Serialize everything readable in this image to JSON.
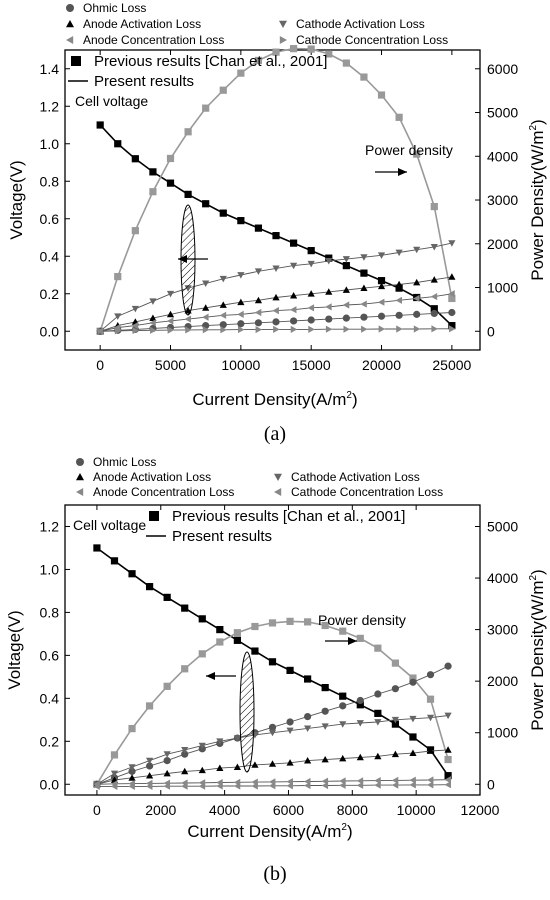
{
  "chart_data": [
    {
      "type": "line",
      "panel": "a",
      "caption": "(a)",
      "xlabel": "Current Density(A/m",
      "xlabel_sup": "2",
      "xlabel_end": ")",
      "ylabel_left": "Voltage(V)",
      "ylabel_right": "Power Density(W/m",
      "ylabel_right_sup": "2",
      "ylabel_right_end": ")",
      "xlim": [
        -2500,
        27000
      ],
      "ylim_left": [
        -0.1,
        1.5
      ],
      "ylim_right": [
        -428,
        6429
      ],
      "xticks": [
        0,
        5000,
        10000,
        15000,
        20000,
        25000
      ],
      "yticks_left": [
        0.0,
        0.2,
        0.4,
        0.6,
        0.8,
        1.0,
        1.2,
        1.4
      ],
      "yticks_right": [
        0,
        1000,
        2000,
        3000,
        4000,
        5000,
        6000
      ],
      "legend": {
        "ohmic": "Ohmic Loss",
        "anode_act": "Anode Activation Loss",
        "cathode_act": "Cathode Activation Loss",
        "anode_conc": "Anode Concentration Loss",
        "cathode_conc": "Cathode Concentration Loss",
        "previous": "Previous results [Chan et al., 2001]",
        "present": "Present results"
      },
      "annotations": {
        "cell_voltage": "Cell voltage",
        "power_density": "Power density"
      },
      "x": [
        0,
        1250,
        2500,
        3750,
        5000,
        6250,
        7500,
        8750,
        10000,
        11250,
        12500,
        13750,
        15000,
        16250,
        17500,
        18750,
        20000,
        21250,
        22500,
        23750,
        25000
      ],
      "series": [
        {
          "key": "cell_voltage",
          "axis": "left",
          "color": "#000000",
          "marker": "square",
          "values": [
            1.1,
            1.0,
            0.92,
            0.85,
            0.79,
            0.73,
            0.68,
            0.63,
            0.59,
            0.55,
            0.51,
            0.47,
            0.43,
            0.39,
            0.35,
            0.31,
            0.27,
            0.23,
            0.18,
            0.12,
            0.03
          ]
        },
        {
          "key": "power_density",
          "axis": "right",
          "color": "#999999",
          "marker": "square",
          "values": [
            0,
            1250,
            2300,
            3190,
            3950,
            4560,
            5100,
            5510,
            5900,
            6190,
            6380,
            6460,
            6450,
            6340,
            6130,
            5810,
            5400,
            4890,
            4050,
            2850,
            750
          ]
        },
        {
          "key": "ohmic",
          "axis": "left",
          "color": "#555555",
          "marker": "circle",
          "values": [
            0.0,
            0.005,
            0.01,
            0.015,
            0.02,
            0.025,
            0.03,
            0.035,
            0.04,
            0.045,
            0.05,
            0.055,
            0.06,
            0.065,
            0.07,
            0.075,
            0.08,
            0.085,
            0.09,
            0.095,
            0.1
          ]
        },
        {
          "key": "anode_act",
          "axis": "left",
          "color": "#000000",
          "marker": "triangle-up",
          "values": [
            0.0,
            0.03,
            0.05,
            0.07,
            0.09,
            0.11,
            0.125,
            0.14,
            0.155,
            0.165,
            0.18,
            0.19,
            0.2,
            0.21,
            0.22,
            0.23,
            0.24,
            0.25,
            0.26,
            0.275,
            0.29
          ]
        },
        {
          "key": "cathode_act",
          "axis": "left",
          "color": "#666666",
          "marker": "triangle-down",
          "values": [
            0.0,
            0.08,
            0.12,
            0.16,
            0.2,
            0.23,
            0.255,
            0.28,
            0.3,
            0.32,
            0.335,
            0.35,
            0.36,
            0.375,
            0.385,
            0.395,
            0.405,
            0.42,
            0.435,
            0.45,
            0.47
          ]
        },
        {
          "key": "anode_conc",
          "axis": "left",
          "color": "#888888",
          "marker": "triangle-left",
          "values": [
            0.0,
            0.02,
            0.03,
            0.045,
            0.055,
            0.065,
            0.075,
            0.085,
            0.09,
            0.1,
            0.11,
            0.115,
            0.125,
            0.13,
            0.14,
            0.145,
            0.155,
            0.165,
            0.175,
            0.185,
            0.2
          ]
        },
        {
          "key": "cathode_conc",
          "axis": "left",
          "color": "#888888",
          "marker": "triangle-right",
          "values": [
            0.0,
            0.002,
            0.004,
            0.005,
            0.006,
            0.007,
            0.008,
            0.008,
            0.009,
            0.009,
            0.01,
            0.01,
            0.01,
            0.011,
            0.011,
            0.011,
            0.012,
            0.012,
            0.012,
            0.013,
            0.013
          ]
        }
      ]
    },
    {
      "type": "line",
      "panel": "b",
      "caption": "(b)",
      "xlabel": "Current Density(A/m",
      "xlabel_sup": "2",
      "xlabel_end": ")",
      "ylabel_left": "Voltage(V)",
      "ylabel_right": "Power Density(W/m",
      "ylabel_right_sup": "2",
      "ylabel_right_end": ")",
      "xlim": [
        -1000,
        12000
      ],
      "ylim_left": [
        -0.05,
        1.3
      ],
      "ylim_right": [
        -208,
        5417
      ],
      "xticks": [
        0,
        2000,
        4000,
        6000,
        8000,
        10000,
        12000
      ],
      "yticks_left": [
        0.0,
        0.2,
        0.4,
        0.6,
        0.8,
        1.0,
        1.2
      ],
      "yticks_right": [
        0,
        1000,
        2000,
        3000,
        4000,
        5000
      ],
      "legend": {
        "ohmic": "Ohmic Loss",
        "anode_act": "Anode Activation Loss",
        "cathode_act": "Cathode Activation Loss",
        "anode_conc": "Anode Concentration Loss",
        "cathode_conc": "Cathode Concentration Loss",
        "previous": "Previous results [Chan et al., 2001]",
        "present": "Present results"
      },
      "annotations": {
        "cell_voltage": "Cell voltage",
        "power_density": "Power density"
      },
      "x": [
        0,
        550,
        1100,
        1650,
        2200,
        2750,
        3300,
        3850,
        4400,
        4950,
        5500,
        6050,
        6600,
        7150,
        7700,
        8250,
        8800,
        9350,
        9900,
        10450,
        11000
      ],
      "series": [
        {
          "key": "cell_voltage",
          "axis": "left",
          "color": "#000000",
          "marker": "square",
          "values": [
            1.1,
            1.04,
            0.98,
            0.92,
            0.87,
            0.82,
            0.77,
            0.72,
            0.67,
            0.62,
            0.57,
            0.53,
            0.49,
            0.45,
            0.41,
            0.37,
            0.33,
            0.28,
            0.22,
            0.16,
            0.04
          ]
        },
        {
          "key": "power_density",
          "axis": "right",
          "color": "#999999",
          "marker": "square",
          "values": [
            0,
            570,
            1080,
            1520,
            1900,
            2240,
            2530,
            2760,
            2940,
            3060,
            3130,
            3160,
            3150,
            3080,
            2970,
            2830,
            2640,
            2350,
            2060,
            1650,
            480
          ]
        },
        {
          "key": "ohmic",
          "axis": "left",
          "color": "#555555",
          "marker": "circle",
          "values": [
            0.0,
            0.03,
            0.06,
            0.085,
            0.11,
            0.14,
            0.165,
            0.19,
            0.215,
            0.24,
            0.265,
            0.29,
            0.315,
            0.34,
            0.365,
            0.39,
            0.42,
            0.445,
            0.475,
            0.51,
            0.55
          ]
        },
        {
          "key": "anode_act",
          "axis": "left",
          "color": "#000000",
          "marker": "triangle-up",
          "values": [
            0.0,
            0.02,
            0.03,
            0.04,
            0.05,
            0.06,
            0.065,
            0.075,
            0.08,
            0.09,
            0.095,
            0.1,
            0.11,
            0.115,
            0.12,
            0.125,
            0.13,
            0.14,
            0.145,
            0.155,
            0.16
          ]
        },
        {
          "key": "cathode_act",
          "axis": "left",
          "color": "#666666",
          "marker": "triangle-down",
          "values": [
            0.0,
            0.05,
            0.08,
            0.11,
            0.14,
            0.16,
            0.18,
            0.2,
            0.215,
            0.23,
            0.24,
            0.25,
            0.26,
            0.27,
            0.28,
            0.285,
            0.29,
            0.3,
            0.305,
            0.31,
            0.32
          ]
        },
        {
          "key": "anode_conc",
          "axis": "left",
          "color": "#888888",
          "marker": "triangle-left",
          "values": [
            0.0,
            0.002,
            0.003,
            0.004,
            0.005,
            0.006,
            0.007,
            0.008,
            0.009,
            0.01,
            0.011,
            0.012,
            0.013,
            0.014,
            0.015,
            0.016,
            0.017,
            0.018,
            0.019,
            0.02,
            0.021
          ]
        },
        {
          "key": "cathode_conc",
          "axis": "left",
          "color": "#888888",
          "marker": "triangle-left",
          "values": [
            -0.01,
            -0.01,
            -0.01,
            -0.01,
            -0.009,
            -0.009,
            -0.009,
            -0.008,
            -0.008,
            -0.008,
            -0.007,
            -0.007,
            -0.006,
            -0.006,
            -0.005,
            -0.005,
            -0.004,
            -0.004,
            -0.003,
            -0.003,
            -0.002
          ]
        }
      ]
    }
  ]
}
